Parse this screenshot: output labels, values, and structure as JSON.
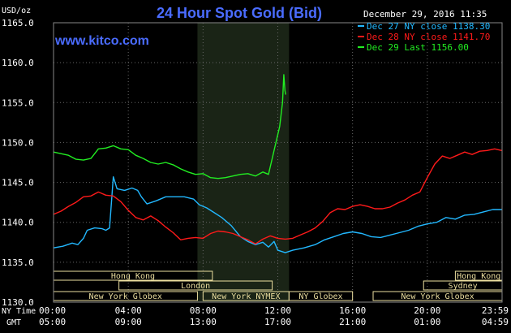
{
  "title": "24 Hour Spot Gold (Bid)",
  "watermark": "www.kitco.com",
  "date_stamp": "December 29, 2016 11:35",
  "y_unit": "USD/oz",
  "colors": {
    "background": "#000000",
    "plot_area": "#000000",
    "session_band": "#1a2416",
    "grid": "#666666",
    "title": "#4a6cff",
    "text": "#ffffff",
    "axis_text": "#ffffff",
    "market_box": "#ecdfa0",
    "market_text": "#ecdfa0"
  },
  "legend": [
    {
      "label": "Dec 27 NY close 1138.30",
      "color": "#22b8ff"
    },
    {
      "label": "Dec 28 NY close 1141.70",
      "color": "#ff1a1a"
    },
    {
      "label": "Dec 29 Last 1156.00",
      "color": "#22ee22"
    }
  ],
  "markets": [
    {
      "name": "Hong Kong",
      "start": 0,
      "end": 8.5,
      "row": 0
    },
    {
      "name": "Hong Kong",
      "start": 21.5,
      "end": 24,
      "row": 0
    },
    {
      "name": "London",
      "start": 3.5,
      "end": 11.7,
      "row": 1
    },
    {
      "name": "Sydney",
      "start": 19.8,
      "end": 24,
      "row": 1
    },
    {
      "name": "New York Globex",
      "start": 0,
      "end": 7.7,
      "row": 2
    },
    {
      "name": "New York NYMEX",
      "start": 8.0,
      "end": 12.6,
      "row": 2
    },
    {
      "name": "NY Globex",
      "start": 12.6,
      "end": 16.0,
      "row": 2
    },
    {
      "name": "New York Globex",
      "start": 17.1,
      "end": 24,
      "row": 2
    }
  ],
  "x_axis": {
    "rows": [
      {
        "label": "NY Time",
        "ticks": [
          "00:00",
          "04:00",
          "08:00",
          "12:00",
          "16:00",
          "20:00",
          "23:59"
        ]
      },
      {
        "label": "GMT",
        "ticks": [
          "05:00",
          "09:00",
          "13:00",
          "17:00",
          "21:00",
          "01:00",
          "04:59"
        ]
      }
    ]
  },
  "chart_data": {
    "type": "line",
    "title": "24 Hour Spot Gold (Bid)",
    "ylabel": "USD/oz",
    "xlim": [
      0,
      24
    ],
    "ylim": [
      1130,
      1165
    ],
    "yticks": [
      "1165.0",
      "1160.0",
      "1155.0",
      "1150.0",
      "1145.0",
      "1140.0",
      "1135.0",
      "1130.0"
    ],
    "highlight_session": [
      7.7,
      12.6
    ],
    "grid": true,
    "legend_position": "top-right",
    "series": [
      {
        "name": "Dec 27 NY close 1138.30",
        "color": "#22b8ff",
        "points": [
          [
            0,
            1136.8
          ],
          [
            0.5,
            1137.0
          ],
          [
            1.0,
            1137.4
          ],
          [
            1.3,
            1137.2
          ],
          [
            1.6,
            1138.0
          ],
          [
            1.8,
            1139.0
          ],
          [
            2.2,
            1139.3
          ],
          [
            2.6,
            1139.2
          ],
          [
            2.8,
            1139.0
          ],
          [
            3.0,
            1139.3
          ],
          [
            3.2,
            1145.7
          ],
          [
            3.4,
            1144.2
          ],
          [
            3.8,
            1144.0
          ],
          [
            4.2,
            1144.3
          ],
          [
            4.5,
            1144.0
          ],
          [
            4.7,
            1143.2
          ],
          [
            5.0,
            1142.3
          ],
          [
            5.5,
            1142.7
          ],
          [
            6.0,
            1143.2
          ],
          [
            6.5,
            1143.2
          ],
          [
            7.0,
            1143.2
          ],
          [
            7.5,
            1142.9
          ],
          [
            7.8,
            1142.2
          ],
          [
            8.2,
            1141.8
          ],
          [
            8.6,
            1141.2
          ],
          [
            9.0,
            1140.6
          ],
          [
            9.5,
            1139.6
          ],
          [
            10.0,
            1138.2
          ],
          [
            10.4,
            1137.6
          ],
          [
            10.8,
            1137.2
          ],
          [
            11.2,
            1137.5
          ],
          [
            11.5,
            1136.9
          ],
          [
            11.8,
            1137.6
          ],
          [
            12.0,
            1136.5
          ],
          [
            12.4,
            1136.2
          ],
          [
            12.8,
            1136.5
          ],
          [
            13.4,
            1136.8
          ],
          [
            14.0,
            1137.2
          ],
          [
            14.5,
            1137.8
          ],
          [
            15.0,
            1138.2
          ],
          [
            15.5,
            1138.6
          ],
          [
            16.0,
            1138.8
          ],
          [
            16.5,
            1138.6
          ],
          [
            17.0,
            1138.2
          ],
          [
            17.5,
            1138.1
          ],
          [
            18.0,
            1138.4
          ],
          [
            18.5,
            1138.7
          ],
          [
            19.0,
            1139.0
          ],
          [
            19.5,
            1139.5
          ],
          [
            20.0,
            1139.8
          ],
          [
            20.5,
            1140.0
          ],
          [
            21.0,
            1140.6
          ],
          [
            21.5,
            1140.4
          ],
          [
            22.0,
            1140.9
          ],
          [
            22.5,
            1141.0
          ],
          [
            23.0,
            1141.3
          ],
          [
            23.5,
            1141.6
          ],
          [
            23.98,
            1141.6
          ]
        ]
      },
      {
        "name": "Dec 28 NY close 1141.70",
        "color": "#ff1a1a",
        "points": [
          [
            0,
            1141.0
          ],
          [
            0.4,
            1141.4
          ],
          [
            0.8,
            1142.0
          ],
          [
            1.2,
            1142.5
          ],
          [
            1.6,
            1143.2
          ],
          [
            2.0,
            1143.3
          ],
          [
            2.4,
            1143.8
          ],
          [
            2.8,
            1143.4
          ],
          [
            3.2,
            1143.3
          ],
          [
            3.6,
            1142.6
          ],
          [
            4.0,
            1141.5
          ],
          [
            4.4,
            1140.6
          ],
          [
            4.8,
            1140.3
          ],
          [
            5.2,
            1140.8
          ],
          [
            5.6,
            1140.2
          ],
          [
            6.0,
            1139.4
          ],
          [
            6.4,
            1138.7
          ],
          [
            6.8,
            1137.8
          ],
          [
            7.2,
            1138.0
          ],
          [
            7.6,
            1138.1
          ],
          [
            8.0,
            1138.0
          ],
          [
            8.4,
            1138.6
          ],
          [
            8.8,
            1138.9
          ],
          [
            9.2,
            1138.8
          ],
          [
            9.6,
            1138.6
          ],
          [
            10.0,
            1138.2
          ],
          [
            10.4,
            1137.8
          ],
          [
            10.8,
            1137.3
          ],
          [
            11.2,
            1137.9
          ],
          [
            11.6,
            1138.3
          ],
          [
            12.0,
            1138.0
          ],
          [
            12.4,
            1137.9
          ],
          [
            12.8,
            1138.0
          ],
          [
            13.2,
            1138.4
          ],
          [
            13.6,
            1138.8
          ],
          [
            14.0,
            1139.3
          ],
          [
            14.4,
            1140.1
          ],
          [
            14.8,
            1141.2
          ],
          [
            15.2,
            1141.7
          ],
          [
            15.6,
            1141.6
          ],
          [
            16.0,
            1142.0
          ],
          [
            16.4,
            1142.2
          ],
          [
            16.8,
            1142.0
          ],
          [
            17.2,
            1141.7
          ],
          [
            17.6,
            1141.7
          ],
          [
            18.0,
            1141.9
          ],
          [
            18.4,
            1142.4
          ],
          [
            18.8,
            1142.8
          ],
          [
            19.2,
            1143.4
          ],
          [
            19.6,
            1143.8
          ],
          [
            20.0,
            1145.6
          ],
          [
            20.4,
            1147.3
          ],
          [
            20.8,
            1148.3
          ],
          [
            21.2,
            1148.0
          ],
          [
            21.6,
            1148.4
          ],
          [
            22.0,
            1148.8
          ],
          [
            22.4,
            1148.5
          ],
          [
            22.8,
            1148.9
          ],
          [
            23.2,
            1149.0
          ],
          [
            23.6,
            1149.2
          ],
          [
            23.98,
            1149.0
          ]
        ]
      },
      {
        "name": "Dec 29 Last 1156.00",
        "color": "#22ee22",
        "points": [
          [
            0,
            1148.8
          ],
          [
            0.4,
            1148.6
          ],
          [
            0.8,
            1148.4
          ],
          [
            1.2,
            1147.9
          ],
          [
            1.6,
            1147.8
          ],
          [
            2.0,
            1148.0
          ],
          [
            2.4,
            1149.2
          ],
          [
            2.8,
            1149.3
          ],
          [
            3.2,
            1149.6
          ],
          [
            3.6,
            1149.2
          ],
          [
            4.0,
            1149.1
          ],
          [
            4.4,
            1148.4
          ],
          [
            4.8,
            1148.0
          ],
          [
            5.2,
            1147.5
          ],
          [
            5.6,
            1147.3
          ],
          [
            6.0,
            1147.5
          ],
          [
            6.4,
            1147.2
          ],
          [
            6.8,
            1146.7
          ],
          [
            7.2,
            1146.3
          ],
          [
            7.6,
            1146.0
          ],
          [
            8.0,
            1146.1
          ],
          [
            8.4,
            1145.6
          ],
          [
            8.8,
            1145.5
          ],
          [
            9.2,
            1145.6
          ],
          [
            9.6,
            1145.8
          ],
          [
            10.0,
            1146.0
          ],
          [
            10.4,
            1146.1
          ],
          [
            10.8,
            1145.8
          ],
          [
            11.2,
            1146.3
          ],
          [
            11.5,
            1146.0
          ],
          [
            11.7,
            1148.0
          ],
          [
            11.9,
            1150.0
          ],
          [
            12.1,
            1152.0
          ],
          [
            12.25,
            1155.0
          ],
          [
            12.32,
            1158.5
          ],
          [
            12.38,
            1156.5
          ],
          [
            12.42,
            1156.0
          ]
        ]
      }
    ]
  }
}
